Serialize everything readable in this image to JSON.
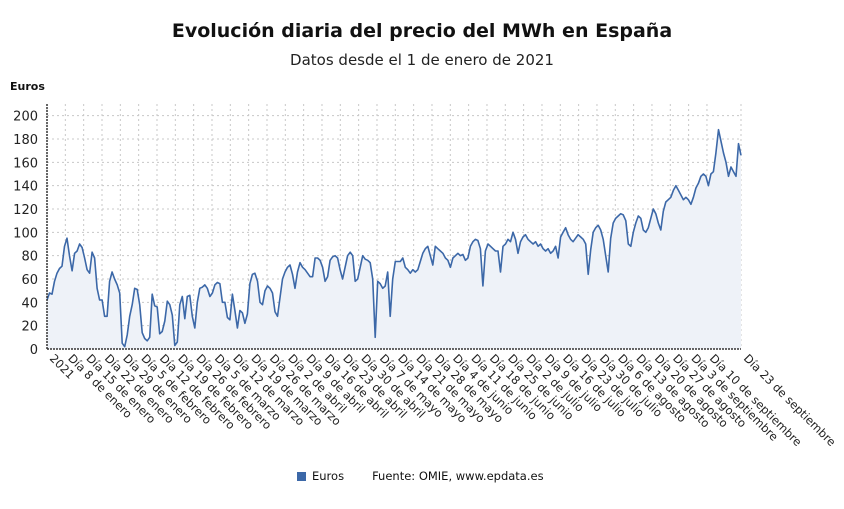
{
  "header": {
    "title": "Evolución diaria del precio del MWh en España",
    "subtitle": "Datos desde el 1 de enero de 2021"
  },
  "legend": {
    "series_label": "Euros",
    "source": "Fuente: OMIE, www.epdata.es"
  },
  "colors": {
    "line": "#3c68a8",
    "area": "#eef2f8",
    "grid": "#c8c8c8"
  },
  "chart_data": {
    "type": "area",
    "title": "Evolución diaria del precio del MWh en España",
    "subtitle": "Datos desde el 1 de enero de 2021",
    "xlabel": "",
    "ylabel": "Euros",
    "ylim": [
      0,
      210
    ],
    "yticks": [
      0,
      20,
      40,
      60,
      80,
      100,
      120,
      140,
      160,
      180,
      200
    ],
    "grid": true,
    "legend_position": "bottom",
    "x_start": "2021-01-01",
    "x_end": "2021-09-23",
    "x_tick_labels": [
      "2021",
      "Día 8 de enero",
      "Día 15 de enero",
      "Día 22 de enero",
      "Día 29 de enero",
      "Día 5 de febrero",
      "Día 12 de febrero",
      "Día 19 de febrero",
      "Día 26 de febrero",
      "Día 5 de marzo",
      "Día 12 de marzo",
      "Día 19 de marzo",
      "Día 26 de marzo",
      "Día 2 de abril",
      "Día 9 de abril",
      "Día 16 de abril",
      "Día 23 de abril",
      "Día 30 de abril",
      "Día 7 de mayo",
      "Día 14 de mayo",
      "Día 21 de mayo",
      "Día 28 de mayo",
      "Día 4 de junio",
      "Día 11 de junio",
      "Día 18 de junio",
      "Día 25 de junio",
      "Día 2 de julio",
      "Día 9 de julio",
      "Día 16 de julio",
      "Día 23 de julio",
      "Día 30 de julio",
      "Día 6 de agosto",
      "Día 13 de agosto",
      "Día 20 de agosto",
      "Día 27 de agosto",
      "Día 3 de septiembre",
      "Día 10 de septiembre",
      "Día 23 de septiembre"
    ],
    "x_tick_days": [
      0,
      7,
      14,
      21,
      28,
      35,
      42,
      49,
      56,
      63,
      70,
      77,
      84,
      91,
      98,
      105,
      112,
      119,
      126,
      133,
      140,
      147,
      154,
      161,
      168,
      175,
      182,
      189,
      196,
      203,
      210,
      217,
      224,
      231,
      238,
      245,
      252,
      265
    ],
    "series": [
      {
        "name": "Euros",
        "values": [
          42,
          48,
          47,
          58,
          65,
          69,
          71,
          88,
          95,
          80,
          67,
          82,
          84,
          90,
          87,
          78,
          68,
          65,
          83,
          78,
          52,
          42,
          42,
          28,
          28,
          58,
          66,
          60,
          55,
          48,
          5,
          2,
          12,
          28,
          38,
          52,
          51,
          38,
          14,
          9,
          7,
          10,
          47,
          37,
          36,
          13,
          15,
          24,
          41,
          38,
          29,
          3,
          6,
          38,
          45,
          26,
          45,
          46,
          28,
          18,
          40,
          52,
          53,
          55,
          52,
          45,
          48,
          55,
          57,
          56,
          40,
          40,
          27,
          25,
          47,
          33,
          18,
          33,
          31,
          22,
          30,
          56,
          64,
          65,
          58,
          40,
          38,
          50,
          54,
          52,
          48,
          32,
          28,
          44,
          60,
          66,
          70,
          72,
          64,
          52,
          66,
          74,
          70,
          68,
          65,
          62,
          62,
          78,
          78,
          76,
          70,
          58,
          62,
          76,
          79,
          80,
          78,
          68,
          60,
          70,
          80,
          83,
          80,
          58,
          60,
          70,
          80,
          77,
          76,
          74,
          60,
          10,
          58,
          56,
          52,
          54,
          66,
          28,
          60,
          75,
          75,
          75,
          78,
          70,
          68,
          65,
          68,
          66,
          68,
          75,
          82,
          86,
          88,
          80,
          72,
          88,
          86,
          84,
          82,
          78,
          76,
          70,
          78,
          80,
          82,
          80,
          81,
          76,
          78,
          88,
          92,
          94,
          93,
          86,
          54,
          84,
          90,
          88,
          86,
          84,
          84,
          66,
          88,
          90,
          94,
          92,
          100,
          94,
          82,
          92,
          96,
          98,
          94,
          92,
          90,
          92,
          88,
          90,
          86,
          84,
          86,
          82,
          84,
          88,
          78,
          96,
          100,
          104,
          98,
          94,
          92,
          95,
          98,
          96,
          94,
          90,
          64,
          85,
          100,
          104,
          106,
          102,
          94,
          80,
          66,
          95,
          108,
          112,
          114,
          116,
          115,
          110,
          90,
          88,
          100,
          108,
          114,
          112,
          102,
          100,
          104,
          112,
          120,
          116,
          108,
          102,
          118,
          126,
          128,
          130,
          136,
          140,
          136,
          132,
          128,
          130,
          128,
          124,
          130,
          138,
          142,
          148,
          150,
          148,
          140,
          150,
          152,
          168,
          188,
          178,
          168,
          160,
          148,
          156,
          152,
          148,
          176,
          166
        ]
      }
    ]
  }
}
